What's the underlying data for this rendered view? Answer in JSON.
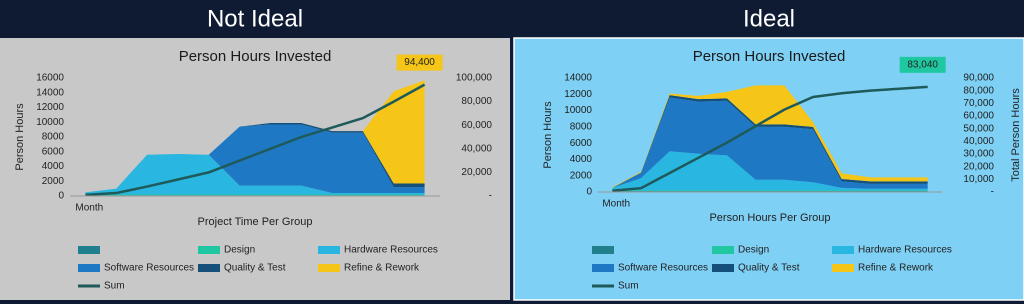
{
  "chart_data": [
    {
      "type": "area",
      "stacked": true,
      "heading": "Not Ideal",
      "title": "Person Hours Invested",
      "panel_color": "#c8c8c8",
      "x_label": "Project Time Per Group",
      "y_label": "Person Hours",
      "categories": [
        "Month",
        null,
        null,
        null,
        null,
        null,
        null,
        null,
        null,
        null,
        null,
        null
      ],
      "ylim": [
        0,
        16000
      ],
      "yticks": [
        0,
        2000,
        4000,
        6000,
        8000,
        10000,
        12000,
        14000,
        16000
      ],
      "y2lim": [
        0,
        100000
      ],
      "y2ticks": [
        {
          "value": 0,
          "label": "-"
        },
        {
          "value": 20000,
          "label": "20,000"
        },
        {
          "value": 40000,
          "label": "40,000"
        },
        {
          "value": 60000,
          "label": "60,000"
        },
        {
          "value": 80000,
          "label": "80,000"
        },
        {
          "value": 100000,
          "label": "100,000"
        }
      ],
      "value_label_color": "#f5c518",
      "series": [
        {
          "name": null,
          "color": "#1f7f8c",
          "values": [
            100,
            100,
            100,
            100,
            100,
            100,
            100,
            100,
            100,
            100,
            100,
            100
          ]
        },
        {
          "name": "Design",
          "color": "#1fc8a0",
          "values": [
            100,
            100,
            100,
            100,
            100,
            100,
            100,
            100,
            100,
            100,
            100,
            100
          ]
        },
        {
          "name": "Hardware Resources",
          "color": "#29b6e0",
          "values": [
            300,
            800,
            5400,
            5500,
            5400,
            1200,
            1200,
            1200,
            200,
            200,
            200,
            200
          ]
        },
        {
          "name": "Software Resources",
          "color": "#1f78c4",
          "values": [
            0,
            0,
            0,
            0,
            0,
            8000,
            8300,
            8300,
            8200,
            8200,
            800,
            800
          ]
        },
        {
          "name": "Quality & Test",
          "color": "#14507a",
          "values": [
            0,
            0,
            0,
            0,
            0,
            0,
            200,
            200,
            200,
            200,
            500,
            500
          ]
        },
        {
          "name": "Refine & Rework",
          "color": "#f5c518",
          "values": [
            0,
            0,
            0,
            0,
            0,
            0,
            0,
            0,
            0,
            0,
            12500,
            14000
          ]
        },
        {
          "name": "Sum",
          "color": "#1e5a5a",
          "type": "line",
          "axis": "y2",
          "values": [
            1000,
            2500,
            8000,
            14000,
            20000,
            30000,
            40000,
            50000,
            58000,
            66000,
            80000,
            94400
          ],
          "value_labels": [
            null,
            null,
            null,
            null,
            null,
            null,
            null,
            null,
            null,
            null,
            null,
            "94,400"
          ]
        }
      ]
    },
    {
      "type": "area",
      "stacked": true,
      "heading": "Ideal",
      "title": "Person Hours Invested",
      "panel_color": "#7fd0f5",
      "x_label": "Person Hours Per Group",
      "y_label": "Person Hours",
      "y2_label": "Total Person Hours",
      "categories": [
        "Month",
        null,
        null,
        null,
        null,
        null,
        null,
        null,
        null,
        null,
        null,
        null
      ],
      "ylim": [
        0,
        14000
      ],
      "yticks": [
        0,
        2000,
        4000,
        6000,
        8000,
        10000,
        12000,
        14000
      ],
      "y2lim": [
        0,
        90000
      ],
      "y2ticks": [
        {
          "value": 0,
          "label": "-"
        },
        {
          "value": 10000,
          "label": "10,000"
        },
        {
          "value": 20000,
          "label": "20,000"
        },
        {
          "value": 30000,
          "label": "30,000"
        },
        {
          "value": 40000,
          "label": "40,000"
        },
        {
          "value": 50000,
          "label": "50,000"
        },
        {
          "value": 60000,
          "label": "60,000"
        },
        {
          "value": 70000,
          "label": "70,000"
        },
        {
          "value": 80000,
          "label": "80,000"
        },
        {
          "value": 90000,
          "label": "90,000"
        }
      ],
      "value_label_color": "#1fc8a0",
      "series": [
        {
          "name": null,
          "color": "#1f7f8c",
          "values": [
            100,
            100,
            100,
            100,
            100,
            100,
            100,
            100,
            100,
            100,
            100,
            100
          ]
        },
        {
          "name": "Design",
          "color": "#1fc8a0",
          "values": [
            100,
            100,
            100,
            100,
            100,
            100,
            100,
            100,
            100,
            100,
            100,
            100
          ]
        },
        {
          "name": "Hardware Resources",
          "color": "#29b6e0",
          "values": [
            300,
            1500,
            4800,
            4500,
            4300,
            1300,
            1300,
            1000,
            300,
            200,
            200,
            200
          ]
        },
        {
          "name": "Software Resources",
          "color": "#1f78c4",
          "values": [
            0,
            700,
            6600,
            6400,
            6700,
            6500,
            6500,
            6500,
            800,
            600,
            600,
            600
          ]
        },
        {
          "name": "Quality & Test",
          "color": "#14507a",
          "values": [
            0,
            0,
            300,
            300,
            300,
            300,
            300,
            300,
            300,
            300,
            300,
            300
          ]
        },
        {
          "name": "Refine & Rework",
          "color": "#f5c518",
          "values": [
            100,
            100,
            200,
            400,
            800,
            4800,
            4800,
            600,
            700,
            500,
            500,
            500
          ]
        },
        {
          "name": "Sum",
          "color": "#1e5a5a",
          "type": "line",
          "axis": "y2",
          "values": [
            1000,
            3000,
            15000,
            27000,
            39000,
            52000,
            65000,
            75000,
            78000,
            80000,
            81500,
            83040
          ],
          "value_labels": [
            null,
            null,
            null,
            null,
            null,
            null,
            null,
            null,
            null,
            null,
            null,
            "83,040"
          ]
        }
      ]
    }
  ]
}
